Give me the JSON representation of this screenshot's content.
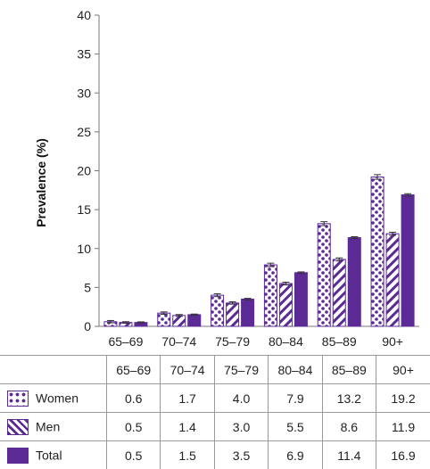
{
  "colors": {
    "primary": "#5b2a94",
    "errorbar": "#333333",
    "axis": "#777777"
  },
  "chart_data": {
    "type": "bar",
    "ylabel": "Prevalence (%)",
    "xlabel": "",
    "ylim": [
      0,
      40
    ],
    "yticks": [
      0,
      5,
      10,
      15,
      20,
      25,
      30,
      35,
      40
    ],
    "categories": [
      "65–69",
      "70–74",
      "75–79",
      "80–84",
      "85–89",
      "90+"
    ],
    "series": [
      {
        "name": "Women",
        "pattern": "dots",
        "values": [
          0.6,
          1.7,
          4.0,
          7.9,
          13.2,
          19.2
        ],
        "err": [
          0.15,
          0.15,
          0.18,
          0.22,
          0.25,
          0.3
        ]
      },
      {
        "name": "Men",
        "pattern": "stripes",
        "values": [
          0.5,
          1.4,
          3.0,
          5.5,
          8.6,
          11.9
        ],
        "err": [
          0.1,
          0.12,
          0.15,
          0.18,
          0.2,
          0.2
        ]
      },
      {
        "name": "Total",
        "pattern": "solid",
        "values": [
          0.5,
          1.5,
          3.5,
          6.9,
          11.4,
          16.9
        ],
        "err": [
          0.08,
          0.08,
          0.1,
          0.1,
          0.12,
          0.15
        ]
      }
    ],
    "grid": false,
    "legend_position": "table-below"
  },
  "table": {
    "rows": [
      {
        "label": "Women",
        "values": [
          "0.6",
          "1.7",
          "4.0",
          "7.9",
          "13.2",
          "19.2"
        ]
      },
      {
        "label": "Men",
        "values": [
          "0.5",
          "1.4",
          "3.0",
          "5.5",
          "8.6",
          "11.9"
        ]
      },
      {
        "label": "Total",
        "values": [
          "0.5",
          "1.5",
          "3.5",
          "6.9",
          "11.4",
          "16.9"
        ]
      }
    ]
  }
}
